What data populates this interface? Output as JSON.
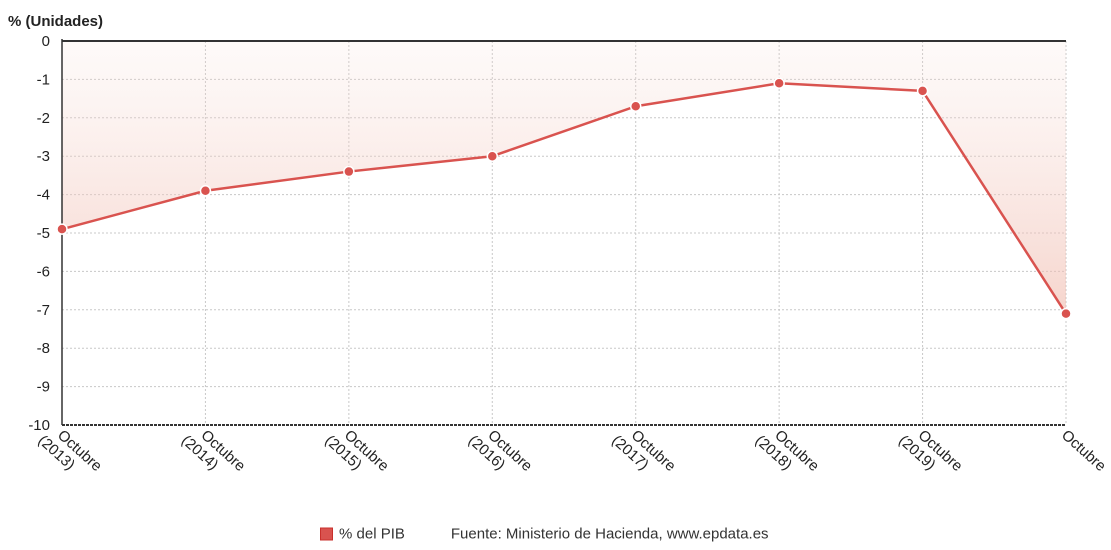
{
  "chart_data": {
    "type": "line",
    "ylabel": "% (Unidades)",
    "ylim": [
      -10,
      0
    ],
    "yticks": [
      0,
      -1,
      -2,
      -3,
      -4,
      -5,
      -6,
      -7,
      -8,
      -9,
      -10
    ],
    "categories": [
      [
        "Octubre",
        "(2013)"
      ],
      [
        "Octubre",
        "(2014)"
      ],
      [
        "Octubre",
        "(2015)"
      ],
      [
        "Octubre",
        "(2016)"
      ],
      [
        "Octubre",
        "(2017)"
      ],
      [
        "Octubre",
        "(2018)"
      ],
      [
        "Octubre",
        "(2019)"
      ],
      [
        "Octubre",
        ""
      ]
    ],
    "series": [
      {
        "name": "% del PIB",
        "values": [
          -4.9,
          -3.9,
          -3.4,
          -3.0,
          -1.7,
          -1.1,
          -1.3,
          -7.1
        ]
      }
    ],
    "grid": true,
    "legend_position": "bottom",
    "colors": {
      "line": "#d9534f",
      "marker": "#d9534f",
      "fill": "#f5d5cf",
      "grid": "#c8c8c8",
      "axis": "#333333"
    }
  },
  "legend": {
    "series_label": "% del PIB",
    "source": "Fuente: Ministerio de Hacienda, www.epdata.es"
  }
}
